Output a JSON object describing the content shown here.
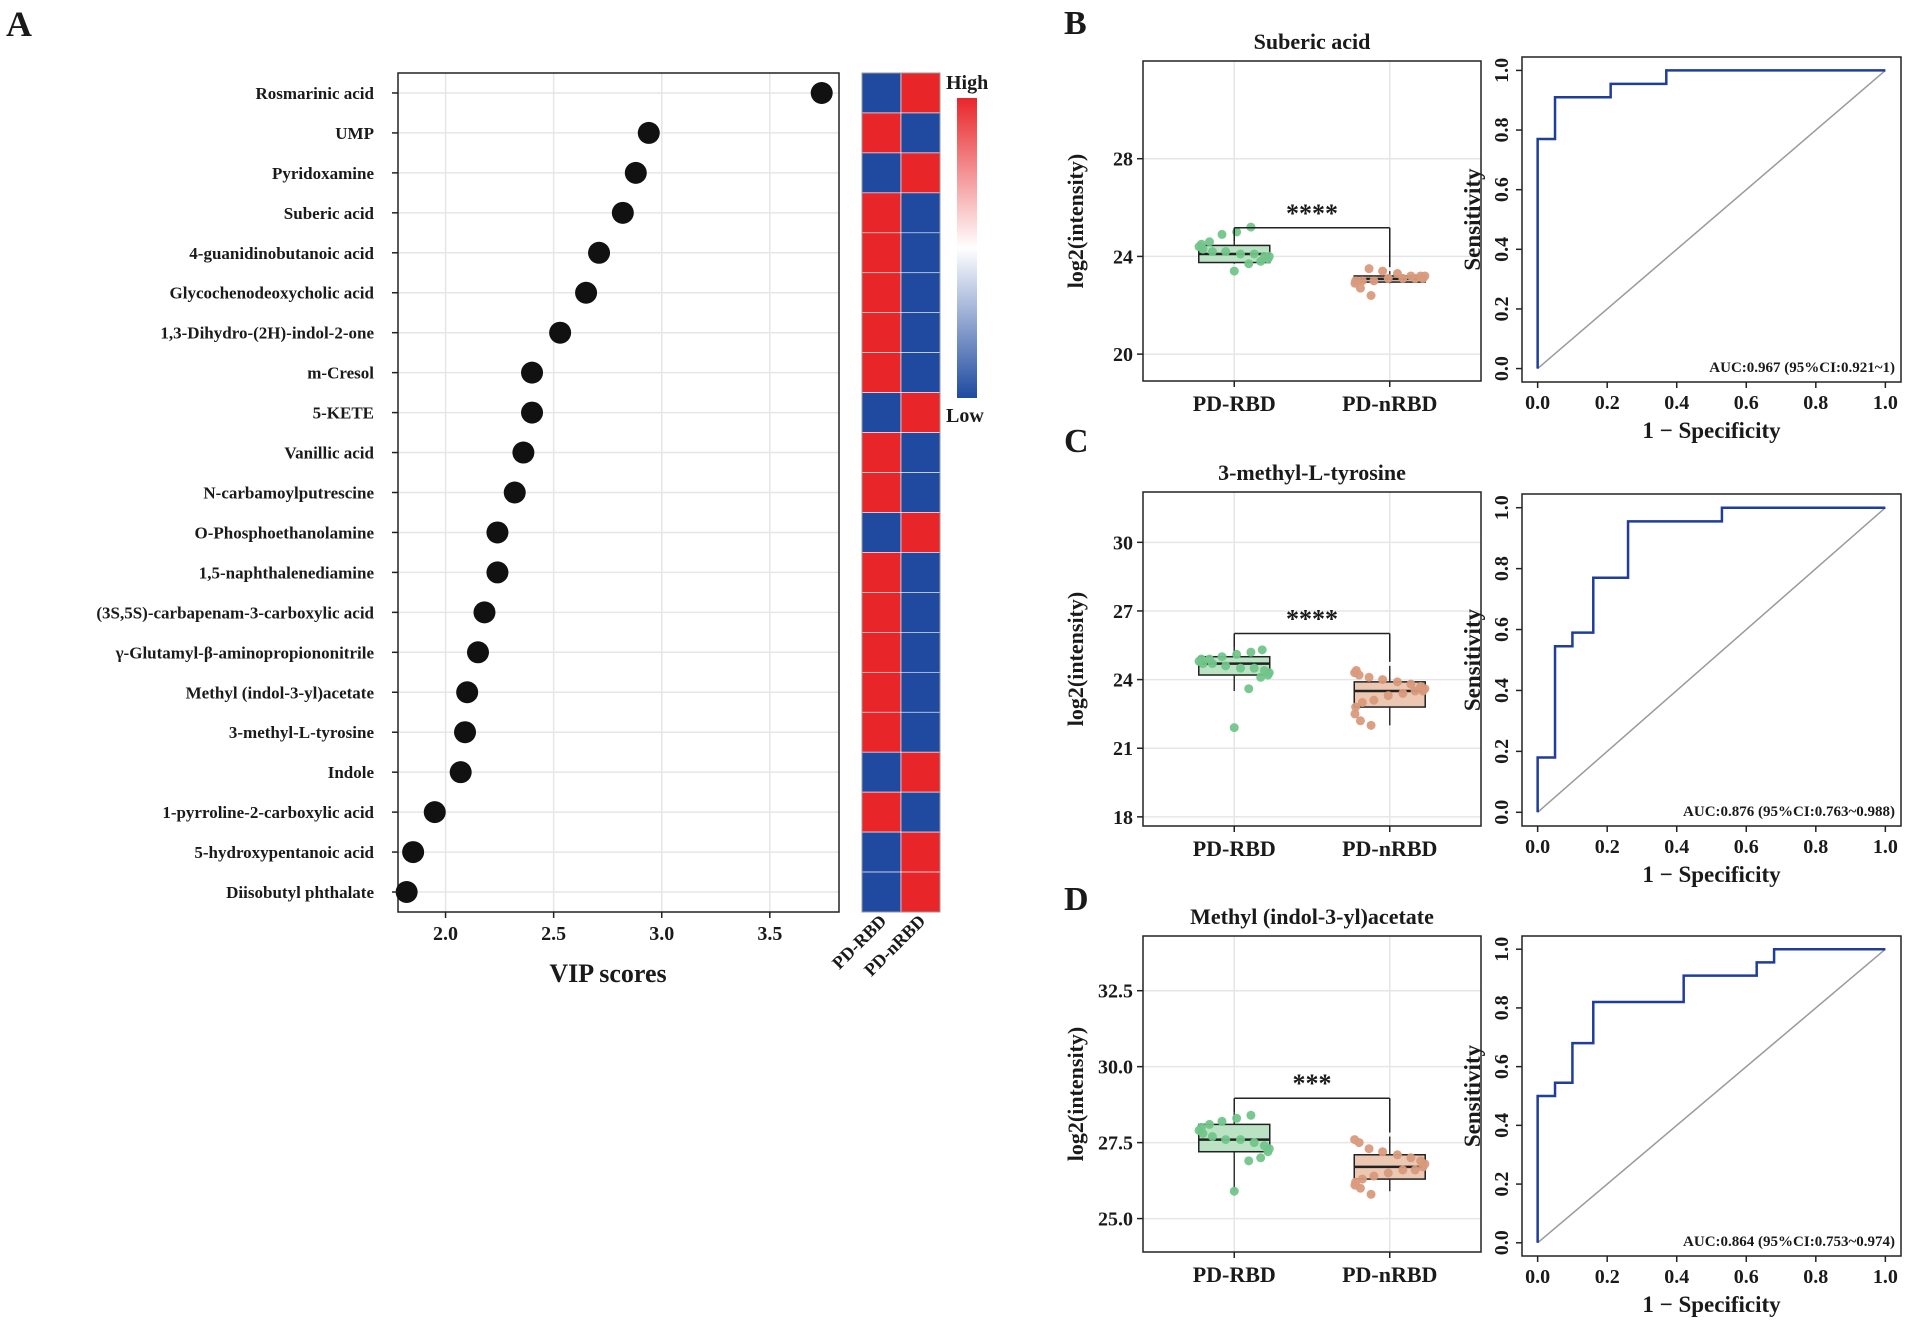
{
  "colors": {
    "dot": "#111111",
    "high": "#e8262a",
    "low": "#1f4aa0",
    "pd_rbd_box": "#b9e3c3",
    "pd_rbd_point": "#72c58a",
    "pd_nrbd_box": "#ecc7b2",
    "pd_nrbd_point": "#d99a7c",
    "roc_line": "#1f3d99",
    "diagonal": "#9a9a9a",
    "grid": "#e6e6e6",
    "axis": "#222222"
  },
  "panel_labels": {
    "a": "A",
    "b": "B",
    "c": "C",
    "d": "D"
  },
  "chart_data": [
    {
      "id": "A",
      "type": "scatter",
      "title": "",
      "xlabel": "VIP scores",
      "xlim": [
        1.78,
        3.82
      ],
      "xticks": [
        2.0,
        2.5,
        3.0,
        3.5
      ],
      "xtick_labels": [
        "2.0",
        "2.5",
        "3.0",
        "3.5"
      ],
      "categories": [
        "Rosmarinic acid",
        "UMP",
        "Pyridoxamine",
        "Suberic acid",
        "4-guanidinobutanoic acid",
        "Glycochenodeoxycholic acid",
        "1,3-Dihydro-(2H)-indol-2-one",
        "m-Cresol",
        "5-KETE",
        "Vanillic acid",
        "N-carbamoylputrescine",
        "O-Phosphoethanolamine",
        "1,5-naphthalenediamine",
        "(3S,5S)-carbapenam-3-carboxylic acid",
        "γ-Glutamyl-β-aminopropiononitrile",
        "Methyl (indol-3-yl)acetate",
        "3-methyl-L-tyrosine",
        "Indole",
        "1-pyrroline-2-carboxylic acid",
        "5-hydroxypentanoic acid",
        "Diisobutyl phthalate"
      ],
      "values": [
        3.74,
        2.94,
        2.88,
        2.82,
        2.71,
        2.65,
        2.53,
        2.4,
        2.4,
        2.36,
        2.32,
        2.24,
        2.24,
        2.18,
        2.15,
        2.1,
        2.09,
        2.07,
        1.95,
        1.85,
        1.82
      ]
    },
    {
      "id": "A-heatmap",
      "type": "heatmap",
      "columns": [
        "PD-RBD",
        "PD-nRBD"
      ],
      "rows": [
        "Rosmarinic acid",
        "UMP",
        "Pyridoxamine",
        "Suberic acid",
        "4-guanidinobutanoic acid",
        "Glycochenodeoxycholic acid",
        "1,3-Dihydro-(2H)-indol-2-one",
        "m-Cresol",
        "5-KETE",
        "Vanillic acid",
        "N-carbamoylputrescine",
        "O-Phosphoethanolamine",
        "1,5-naphthalenediamine",
        "(3S,5S)-carbapenam-3-carboxylic acid",
        "γ-Glutamyl-β-aminopropiononitrile",
        "Methyl (indol-3-yl)acetate",
        "3-methyl-L-tyrosine",
        "Indole",
        "1-pyrroline-2-carboxylic acid",
        "5-hydroxypentanoic acid",
        "Diisobutyl phthalate"
      ],
      "values": [
        [
          "Low",
          "High"
        ],
        [
          "High",
          "Low"
        ],
        [
          "Low",
          "High"
        ],
        [
          "High",
          "Low"
        ],
        [
          "High",
          "Low"
        ],
        [
          "High",
          "Low"
        ],
        [
          "High",
          "Low"
        ],
        [
          "High",
          "Low"
        ],
        [
          "Low",
          "High"
        ],
        [
          "High",
          "Low"
        ],
        [
          "High",
          "Low"
        ],
        [
          "Low",
          "High"
        ],
        [
          "High",
          "Low"
        ],
        [
          "High",
          "Low"
        ],
        [
          "High",
          "Low"
        ],
        [
          "High",
          "Low"
        ],
        [
          "High",
          "Low"
        ],
        [
          "Low",
          "High"
        ],
        [
          "High",
          "Low"
        ],
        [
          "Low",
          "High"
        ],
        [
          "Low",
          "High"
        ]
      ],
      "legend": {
        "high": "High",
        "low": "Low"
      }
    },
    {
      "id": "B-box",
      "type": "box",
      "title": "Suberic acid",
      "ylabel": "log2(intensity)",
      "categories": [
        "PD-RBD",
        "PD-nRBD"
      ],
      "ylim": [
        18.9,
        32.0
      ],
      "yticks": [
        20,
        24,
        28
      ],
      "ytick_labels": [
        "20",
        "24",
        "28"
      ],
      "significance": "****",
      "boxes": [
        {
          "q1": 23.75,
          "median": 24.1,
          "q3": 24.45,
          "whisker_low": 23.7,
          "whisker_high": 24.6
        },
        {
          "q1": 22.95,
          "median": 23.08,
          "q3": 23.2,
          "whisker_low": 22.9,
          "whisker_high": 23.4
        }
      ],
      "points": [
        [
          23.4,
          23.7,
          23.8,
          23.9,
          24.0,
          24.0,
          24.1,
          24.1,
          24.2,
          24.2,
          24.3,
          24.4,
          24.5,
          24.6,
          24.9,
          25.0,
          25.2
        ],
        [
          22.4,
          22.7,
          22.9,
          23.0,
          23.0,
          23.0,
          23.1,
          23.1,
          23.1,
          23.1,
          23.2,
          23.2,
          23.2,
          23.3,
          23.4,
          23.5
        ]
      ]
    },
    {
      "id": "B-roc",
      "type": "line",
      "xlabel": "1 − Specificity",
      "ylabel": "Sensitivity",
      "xlim": [
        0,
        1
      ],
      "ylim": [
        0,
        1
      ],
      "xticks": [
        0.0,
        0.2,
        0.4,
        0.6,
        0.8,
        1.0
      ],
      "xtick_labels": [
        "0.0",
        "0.2",
        "0.4",
        "0.6",
        "0.8",
        "1.0"
      ],
      "yticks": [
        0.0,
        0.2,
        0.4,
        0.6,
        0.8,
        1.0
      ],
      "ytick_labels": [
        "0.0",
        "0.2",
        "0.4",
        "0.6",
        "0.8",
        "1.0"
      ],
      "auc_label": "AUC:0.967 (95%CI:0.921~1)",
      "x": [
        0,
        0,
        0.05,
        0.05,
        0.21,
        0.21,
        0.37,
        0.37,
        1.0
      ],
      "y": [
        0,
        0.77,
        0.77,
        0.91,
        0.91,
        0.955,
        0.955,
        1.0,
        1.0
      ]
    },
    {
      "id": "C-box",
      "type": "box",
      "title": "3-methyl-L-tyrosine",
      "ylabel": "log2(intensity)",
      "categories": [
        "PD-RBD",
        "PD-nRBD"
      ],
      "ylim": [
        17.6,
        32.2
      ],
      "yticks": [
        18,
        21,
        24,
        27,
        30
      ],
      "ytick_labels": [
        "18",
        "21",
        "24",
        "27",
        "30"
      ],
      "significance": "****",
      "boxes": [
        {
          "q1": 24.2,
          "median": 24.7,
          "q3": 25.0,
          "whisker_low": 23.5,
          "whisker_high": 25.4
        },
        {
          "q1": 22.8,
          "median": 23.5,
          "q3": 23.9,
          "whisker_low": 22.0,
          "whisker_high": 24.6
        }
      ],
      "points": [
        [
          21.9,
          23.6,
          24.1,
          24.2,
          24.3,
          24.4,
          24.5,
          24.5,
          24.6,
          24.7,
          24.7,
          24.8,
          24.9,
          24.9,
          25.0,
          25.1,
          25.2,
          25.3
        ],
        [
          22.0,
          22.2,
          22.5,
          22.8,
          23.0,
          23.1,
          23.3,
          23.4,
          23.5,
          23.5,
          23.6,
          23.7,
          23.8,
          23.9,
          24.0,
          24.1,
          24.2,
          24.3,
          24.4
        ]
      ]
    },
    {
      "id": "C-roc",
      "type": "line",
      "xlabel": "1 − Specificity",
      "ylabel": "Sensitivity",
      "xlim": [
        0,
        1
      ],
      "ylim": [
        0,
        1
      ],
      "xticks": [
        0.0,
        0.2,
        0.4,
        0.6,
        0.8,
        1.0
      ],
      "xtick_labels": [
        "0.0",
        "0.2",
        "0.4",
        "0.6",
        "0.8",
        "1.0"
      ],
      "yticks": [
        0.0,
        0.2,
        0.4,
        0.6,
        0.8,
        1.0
      ],
      "ytick_labels": [
        "0.0",
        "0.2",
        "0.4",
        "0.6",
        "0.8",
        "1.0"
      ],
      "auc_label": "AUC:0.876 (95%CI:0.763~0.988)",
      "x": [
        0,
        0,
        0.05,
        0.05,
        0.1,
        0.1,
        0.16,
        0.16,
        0.26,
        0.26,
        0.53,
        0.53,
        1.0
      ],
      "y": [
        0,
        0.18,
        0.18,
        0.545,
        0.545,
        0.59,
        0.59,
        0.77,
        0.77,
        0.955,
        0.955,
        1.0,
        1.0
      ]
    },
    {
      "id": "D-box",
      "type": "box",
      "title": "Methyl (indol-3-yl)acetate",
      "ylabel": "log2(intensity)",
      "categories": [
        "PD-RBD",
        "PD-nRBD"
      ],
      "ylim": [
        23.9,
        34.3
      ],
      "yticks": [
        25.0,
        27.5,
        30.0,
        32.5
      ],
      "ytick_labels": [
        "25.0",
        "27.5",
        "30.0",
        "32.5"
      ],
      "significance": "***",
      "boxes": [
        {
          "q1": 27.2,
          "median": 27.6,
          "q3": 28.1,
          "whisker_low": 25.9,
          "whisker_high": 28.5
        },
        {
          "q1": 26.3,
          "median": 26.7,
          "q3": 27.1,
          "whisker_low": 25.9,
          "whisker_high": 27.7
        }
      ],
      "points": [
        [
          25.9,
          26.9,
          27.0,
          27.2,
          27.3,
          27.4,
          27.5,
          27.6,
          27.6,
          27.7,
          27.8,
          27.9,
          28.0,
          28.1,
          28.2,
          28.3,
          28.4
        ],
        [
          25.8,
          26.0,
          26.1,
          26.2,
          26.3,
          26.4,
          26.5,
          26.6,
          26.6,
          26.7,
          26.8,
          26.9,
          27.0,
          27.1,
          27.2,
          27.3,
          27.5,
          27.6
        ]
      ]
    },
    {
      "id": "D-roc",
      "type": "line",
      "xlabel": "1 − Specificity",
      "ylabel": "Sensitivity",
      "xlim": [
        0,
        1
      ],
      "ylim": [
        0,
        1
      ],
      "xticks": [
        0.0,
        0.2,
        0.4,
        0.6,
        0.8,
        1.0
      ],
      "xtick_labels": [
        "0.0",
        "0.2",
        "0.4",
        "0.6",
        "0.8",
        "1.0"
      ],
      "yticks": [
        0.0,
        0.2,
        0.4,
        0.6,
        0.8,
        1.0
      ],
      "ytick_labels": [
        "0.0",
        "0.2",
        "0.4",
        "0.6",
        "0.8",
        "1.0"
      ],
      "auc_label": "AUC:0.864 (95%CI:0.753~0.974)",
      "x": [
        0,
        0,
        0.05,
        0.05,
        0.1,
        0.1,
        0.16,
        0.16,
        0.42,
        0.42,
        0.63,
        0.63,
        0.68,
        0.68,
        1.0
      ],
      "y": [
        0,
        0.5,
        0.5,
        0.545,
        0.545,
        0.68,
        0.68,
        0.82,
        0.82,
        0.91,
        0.91,
        0.955,
        0.955,
        1.0,
        1.0
      ]
    }
  ]
}
